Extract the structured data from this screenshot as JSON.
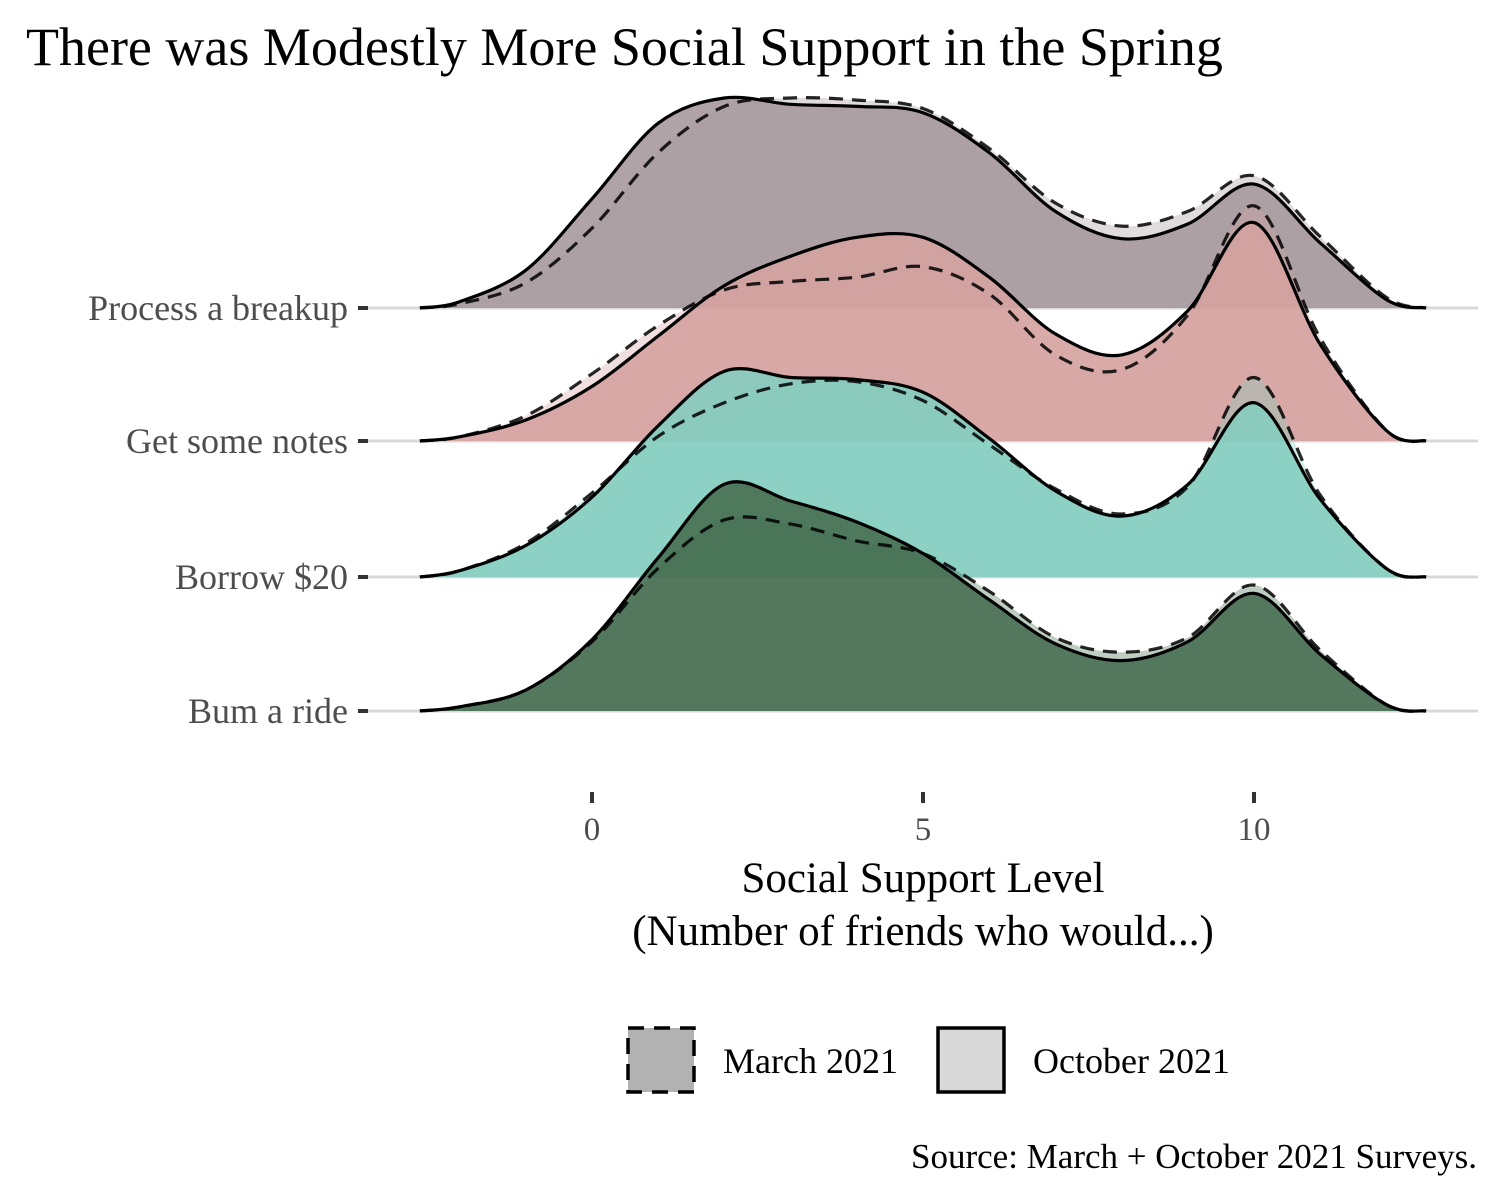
{
  "chart_data": {
    "type": "ridgeline",
    "title": "There was Modestly More Social Support in the Spring",
    "xlabel": "Social Support Level",
    "xlabel_line2": "(Number of friends who would...)",
    "ylabel": "",
    "xlim": [
      -2.6,
      12.6
    ],
    "x_ticks": [
      0,
      5,
      10
    ],
    "x_tick_labels": [
      "0",
      "5",
      "10"
    ],
    "caption": "Source: March + October 2021 Surveys.",
    "legend": {
      "position": "bottom",
      "entries": [
        {
          "label": "March 2021",
          "linetype": "dashed",
          "fill": "#b2b2b2"
        },
        {
          "label": "October 2021",
          "linetype": "solid",
          "fill": "#d9d9d9"
        }
      ]
    },
    "x_grid": [
      -2.6,
      -2,
      -1,
      0,
      1,
      2,
      3,
      4,
      5,
      6,
      7,
      8,
      9,
      10,
      11,
      12,
      12.6
    ],
    "categories": [
      "Process a breakup",
      "Get some notes",
      "Borrow $20",
      "Bum a ride"
    ],
    "series": [
      {
        "name": "Process a breakup",
        "color": "#a6999f",
        "march_values": [
          0,
          0.02,
          0.12,
          0.38,
          0.74,
          0.96,
          1.0,
          0.99,
          0.95,
          0.76,
          0.5,
          0.39,
          0.46,
          0.63,
          0.34,
          0.05,
          0
        ],
        "october_values": [
          0,
          0.03,
          0.18,
          0.52,
          0.88,
          1.0,
          0.97,
          0.96,
          0.93,
          0.74,
          0.46,
          0.33,
          0.4,
          0.59,
          0.31,
          0.04,
          0
        ]
      },
      {
        "name": "Get some notes",
        "color": "#d4a2a0",
        "march_values": [
          0,
          0.02,
          0.12,
          0.32,
          0.55,
          0.72,
          0.76,
          0.78,
          0.83,
          0.7,
          0.41,
          0.34,
          0.6,
          1.12,
          0.49,
          0.05,
          0
        ],
        "october_values": [
          0,
          0.02,
          0.1,
          0.26,
          0.5,
          0.74,
          0.88,
          0.97,
          0.97,
          0.78,
          0.51,
          0.41,
          0.62,
          1.04,
          0.46,
          0.05,
          0
        ],
        "note": "Peak at x≈10 reaches into the row above (ggridges scale > 1)."
      },
      {
        "name": "Borrow $20",
        "color": "#85cdc0",
        "march_values": [
          0,
          0.03,
          0.16,
          0.4,
          0.67,
          0.83,
          0.92,
          0.93,
          0.84,
          0.63,
          0.42,
          0.3,
          0.43,
          0.95,
          0.39,
          0.04,
          0
        ],
        "october_values": [
          0,
          0.03,
          0.15,
          0.38,
          0.72,
          0.98,
          0.95,
          0.94,
          0.88,
          0.66,
          0.41,
          0.29,
          0.44,
          0.83,
          0.37,
          0.04,
          0
        ]
      },
      {
        "name": "Bum a ride",
        "color": "#476f52",
        "march_values": [
          0,
          0.02,
          0.1,
          0.33,
          0.68,
          0.91,
          0.89,
          0.81,
          0.75,
          0.57,
          0.35,
          0.28,
          0.35,
          0.6,
          0.29,
          0.03,
          0
        ],
        "october_values": [
          0,
          0.02,
          0.1,
          0.34,
          0.73,
          1.08,
          1.0,
          0.9,
          0.75,
          0.53,
          0.32,
          0.24,
          0.33,
          0.56,
          0.27,
          0.03,
          0
        ]
      }
    ]
  }
}
